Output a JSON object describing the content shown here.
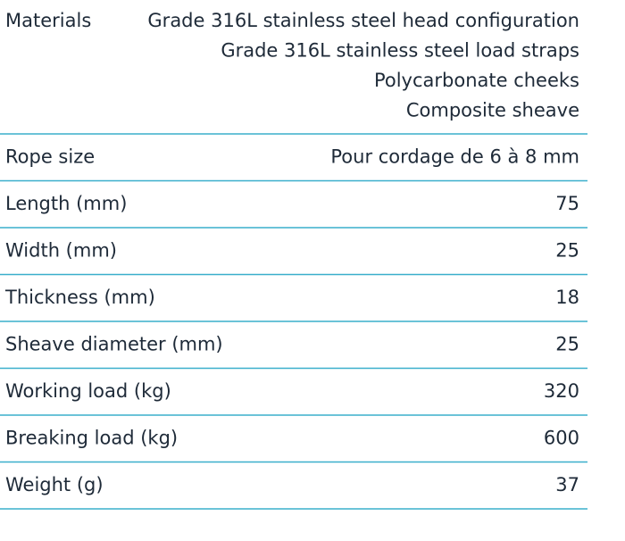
{
  "table": {
    "rows": [
      {
        "label": "Materials",
        "value": [
          "Grade 316L stainless steel head configuration",
          "Grade 316L stainless steel load straps",
          "Polycarbonate cheeks",
          "Composite sheave"
        ]
      },
      {
        "label": "Rope size",
        "value": "Pour cordage de 6 à 8 mm"
      },
      {
        "label": "Length (mm)",
        "value": 75
      },
      {
        "label": "Width (mm)",
        "value": 25
      },
      {
        "label": "Thickness (mm)",
        "value": 18
      },
      {
        "label": "Sheave diameter (mm)",
        "value": 25
      },
      {
        "label": "Working load (kg)",
        "value": 320
      },
      {
        "label": "Breaking load (kg)",
        "value": 600
      },
      {
        "label": "Weight (g)",
        "value": 37
      }
    ]
  }
}
